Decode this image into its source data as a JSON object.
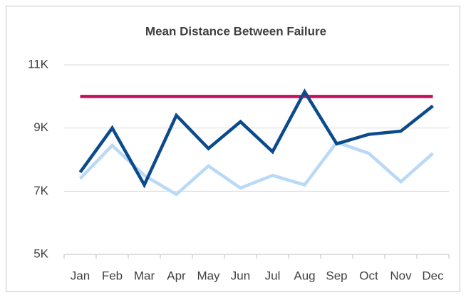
{
  "chart_data": {
    "type": "line",
    "title": "Mean Distance Between Failure",
    "categories": [
      "Jan",
      "Feb",
      "Mar",
      "Apr",
      "May",
      "Jun",
      "Jul",
      "Aug",
      "Sep",
      "Oct",
      "Nov",
      "Dec"
    ],
    "series": [
      {
        "color": "#b9d9f7",
        "values": [
          7400,
          8450,
          7500,
          6900,
          7800,
          7100,
          7500,
          7200,
          8550,
          8200,
          7300,
          8200
        ]
      },
      {
        "color": "#c4105e",
        "values": [
          10000,
          10000,
          10000,
          10000,
          10000,
          10000,
          10000,
          10000,
          10000,
          10000,
          10000,
          10000
        ]
      },
      {
        "color": "#0b4a8b",
        "values": [
          7600,
          9000,
          7200,
          9400,
          8350,
          9200,
          8250,
          10150,
          8500,
          8800,
          8900,
          9700
        ]
      }
    ],
    "ylim": [
      5000,
      11000
    ],
    "yticks": [
      {
        "value": 5000,
        "label": "5K"
      },
      {
        "value": 7000,
        "label": "7K"
      },
      {
        "value": 9000,
        "label": "9K"
      },
      {
        "value": 11000,
        "label": "11K"
      }
    ],
    "grid": true
  }
}
